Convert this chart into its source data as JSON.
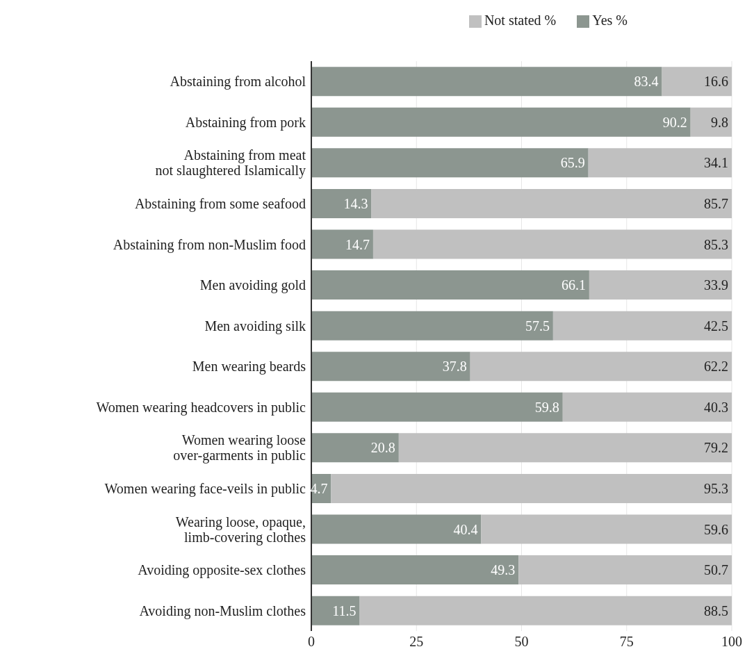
{
  "chart_data": {
    "type": "bar",
    "orientation": "horizontal",
    "stacked": true,
    "categories": [
      "Abstaining from alcohol",
      "Abstaining from pork",
      "Abstaining from meat\nnot slaughtered Islamically",
      "Abstaining from some seafood",
      "Abstaining from non-Muslim food",
      "Men avoiding gold",
      "Men avoiding silk",
      "Men wearing beards",
      "Women wearing headcovers in public",
      "Women wearing loose\nover-garments in public",
      "Women wearing face-veils in public",
      "Wearing loose, opaque,\nlimb-covering clothes",
      "Avoiding opposite-sex clothes",
      "Avoiding non-Muslim clothes"
    ],
    "series": [
      {
        "name": "Yes %",
        "color": "#8c9690",
        "values": [
          83.4,
          90.2,
          65.9,
          14.3,
          14.7,
          66.1,
          57.5,
          37.8,
          59.8,
          20.8,
          4.7,
          40.4,
          49.3,
          11.5
        ]
      },
      {
        "name": "Not stated %",
        "color": "#c0c0c0",
        "values": [
          16.6,
          9.8,
          34.1,
          85.7,
          85.3,
          33.9,
          42.5,
          62.2,
          40.3,
          79.2,
          95.3,
          59.6,
          50.7,
          88.5
        ]
      }
    ],
    "xlim": [
      0,
      100
    ],
    "xticks": [
      0,
      25,
      50,
      75,
      100
    ],
    "grid": "x",
    "legend": "top right",
    "data_labels": true
  }
}
